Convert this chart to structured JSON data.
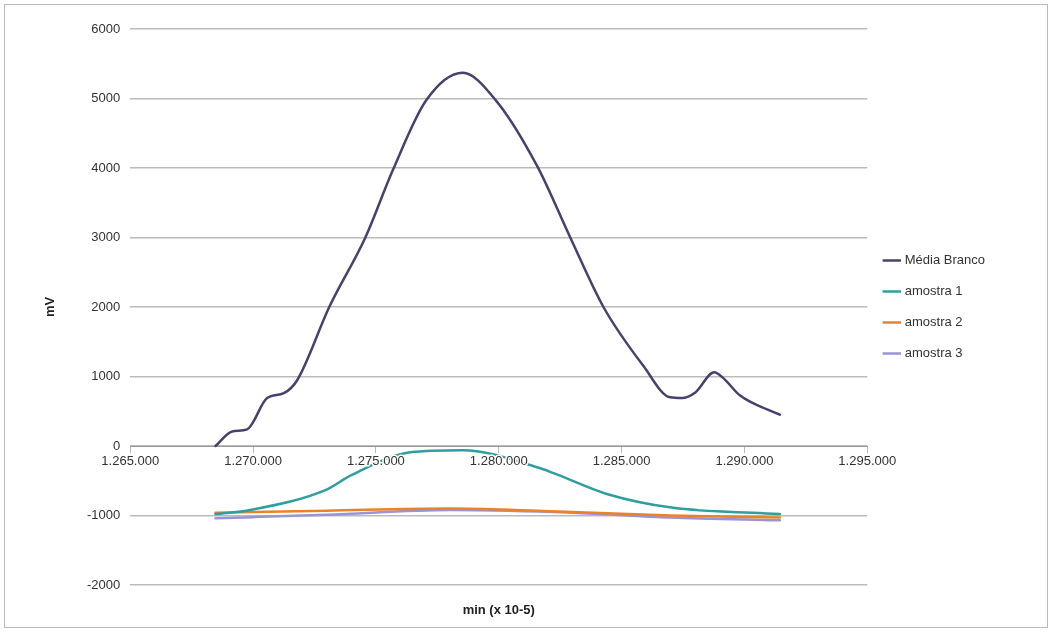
{
  "chart_data": {
    "type": "line",
    "xlabel": "min (x 10-5)",
    "ylabel": "mV",
    "xlim": [
      1265000,
      1295000
    ],
    "xticks": [
      {
        "value": 1265000,
        "label": "1.265.000"
      },
      {
        "value": 1270000,
        "label": "1.270.000"
      },
      {
        "value": 1275000,
        "label": "1.275.000"
      },
      {
        "value": 1280000,
        "label": "1.280.000"
      },
      {
        "value": 1285000,
        "label": "1.285.000"
      },
      {
        "value": 1290000,
        "label": "1.290.000"
      },
      {
        "value": 1295000,
        "label": "1.295.000"
      }
    ],
    "ylim": [
      -2000,
      6000
    ],
    "yticks": [
      -2000,
      -1000,
      0,
      1000,
      2000,
      3000,
      4000,
      5000,
      6000
    ],
    "grid": "y",
    "legend": "right",
    "marker": "none",
    "line_style": "solid",
    "series": [
      {
        "name": "Média Branco",
        "color": "#46426e",
        "x": [
          1268470,
          1269150,
          1269760,
          1270570,
          1271250,
          1271800,
          1273100,
          1274570,
          1275690,
          1277040,
          1278530,
          1279890,
          1281560,
          1282910,
          1284260,
          1285890,
          1286970,
          1287460,
          1288000,
          1288770,
          1289130,
          1289810,
          1291440
        ],
        "values": [
          0,
          210,
          240,
          690,
          760,
          950,
          2000,
          3000,
          3970,
          4970,
          5370,
          4970,
          4030,
          3000,
          2000,
          1150,
          700,
          690,
          770,
          1060,
          980,
          730,
          450
        ]
      },
      {
        "name": "amostra 1",
        "color": "#2e9e9e",
        "x": [
          1268470,
          1269900,
          1272970,
          1274000,
          1276400,
          1278530,
          1281600,
          1282230,
          1284400,
          1287100,
          1290890,
          1291440
        ],
        "values": [
          -980,
          -920,
          -630,
          -420,
          -90,
          -60,
          -310,
          -390,
          -690,
          -890,
          -970,
          -980
        ]
      },
      {
        "name": "amostra 2",
        "color": "#e8832a",
        "x": [
          1268470,
          1273000,
          1278000,
          1283000,
          1287000,
          1291440
        ],
        "values": [
          -960,
          -930,
          -900,
          -950,
          -1000,
          -1030
        ]
      },
      {
        "name": "amostra 3",
        "color": "#9a93d6",
        "x": [
          1268470,
          1273000,
          1278000,
          1283000,
          1287000,
          1291440
        ],
        "values": [
          -1040,
          -990,
          -920,
          -960,
          -1030,
          -1070
        ]
      }
    ]
  }
}
